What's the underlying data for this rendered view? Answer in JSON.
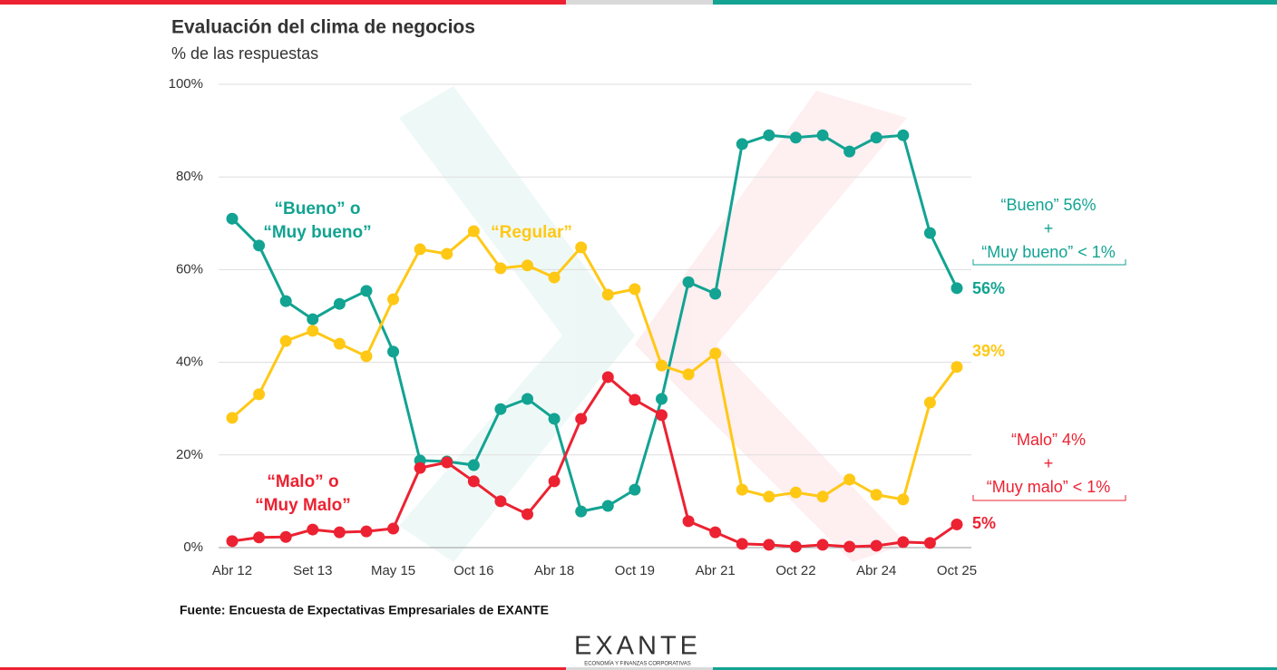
{
  "chart_data": {
    "type": "line",
    "title": "Evaluación del clima de negocios",
    "subtitle": "% de las respuestas",
    "source": "Fuente: Encuesta de Expectativas Empresariales de EXANTE",
    "logo": "EXANTE",
    "logo_tagline": "ECONOMÍA Y FINANZAS CORPORATIVAS",
    "categories": [
      "Abr 12",
      null,
      null,
      "Set 13",
      null,
      null,
      "May 15",
      null,
      null,
      "Oct 16",
      null,
      null,
      "Abr 18",
      null,
      null,
      "Oct 19",
      null,
      null,
      "Abr 21",
      null,
      null,
      "Oct 22",
      null,
      null,
      "Abr 24",
      null,
      null,
      "Oct 25"
    ],
    "ylim": [
      0,
      100
    ],
    "yticks": [
      {
        "value": 0,
        "label": "0%"
      },
      {
        "value": 20,
        "label": "20%"
      },
      {
        "value": 40,
        "label": "40%"
      },
      {
        "value": 60,
        "label": "60%"
      },
      {
        "value": 80,
        "label": "80%"
      },
      {
        "value": 100,
        "label": "100%"
      }
    ],
    "grid": true,
    "series": [
      {
        "name": "“Bueno” o “Muy bueno”",
        "label_lines": [
          "“Bueno” o",
          "“Muy bueno”"
        ],
        "color": "#12a392",
        "values": [
          71.0,
          65.2,
          53.2,
          49.3,
          52.6,
          55.4,
          42.3,
          18.8,
          18.6,
          17.8,
          29.9,
          32.1,
          27.8,
          7.8,
          9.0,
          12.5,
          32.1,
          57.3,
          54.8,
          87.1,
          89.0,
          88.5,
          89.0,
          85.5,
          88.5,
          89.0,
          67.9,
          56
        ],
        "end_label": "56%",
        "note_lines": [
          "“Bueno” 56%",
          "+",
          "“Muy bueno” < 1%"
        ]
      },
      {
        "name": "“Regular”",
        "label_lines": [
          "“Regular”"
        ],
        "color": "#ffc815",
        "values": [
          28.0,
          33.1,
          44.6,
          46.8,
          44.0,
          41.3,
          53.6,
          64.4,
          63.4,
          68.3,
          60.3,
          60.9,
          58.3,
          64.8,
          54.6,
          55.8,
          39.3,
          37.4,
          41.9,
          12.5,
          11.0,
          11.9,
          11.0,
          14.7,
          11.4,
          10.4,
          31.3,
          39
        ],
        "end_label": "39%"
      },
      {
        "name": "“Malo” o “Muy Malo”",
        "label_lines": [
          "“Malo” o",
          "“Muy Malo”"
        ],
        "color": "#ec2232",
        "values": [
          1.4,
          2.2,
          2.3,
          3.9,
          3.3,
          3.5,
          4.1,
          17.2,
          18.4,
          14.3,
          10.0,
          7.2,
          14.3,
          27.8,
          36.8,
          31.9,
          28.6,
          5.7,
          3.3,
          0.8,
          0.6,
          0.2,
          0.6,
          0.2,
          0.4,
          1.2,
          1.0,
          5
        ],
        "end_label": "5%",
        "note_lines": [
          "“Malo” 4%",
          "+",
          "“Muy malo” < 1%"
        ]
      }
    ]
  }
}
